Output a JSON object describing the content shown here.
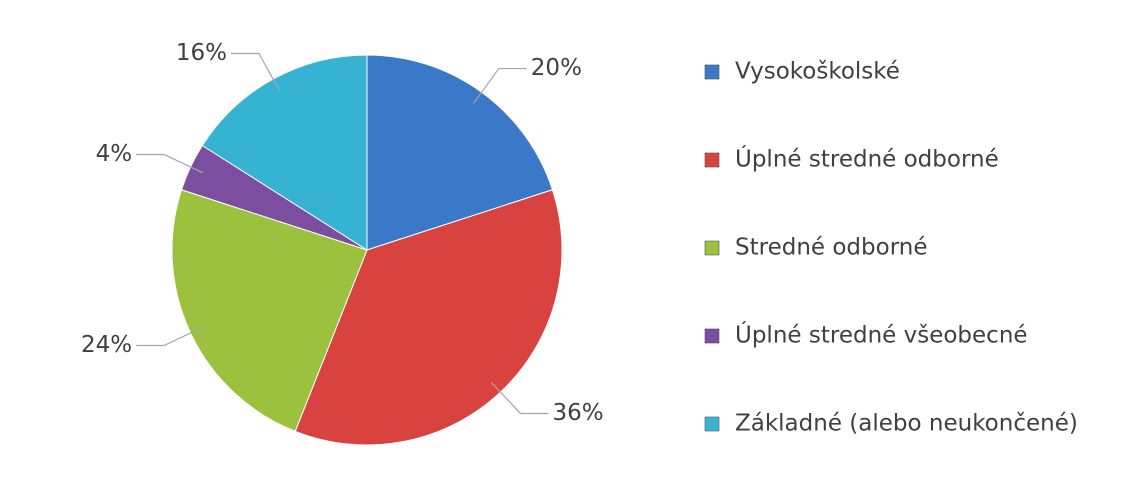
{
  "chart_data": {
    "type": "pie",
    "categories": [
      "Vysokoškolské",
      "Úplné stredné odborné",
      "Stredné odborné",
      "Úplné stredné všeobecné",
      "Základné (alebo neukončené)"
    ],
    "values": [
      20,
      36,
      24,
      4,
      16
    ],
    "value_labels": [
      "20%",
      "36%",
      "24%",
      "4%",
      "16%"
    ],
    "colors": [
      "#3a78c8",
      "#d9433f",
      "#9cc13f",
      "#7b4ea0",
      "#36b3d3"
    ],
    "legend": "right"
  }
}
